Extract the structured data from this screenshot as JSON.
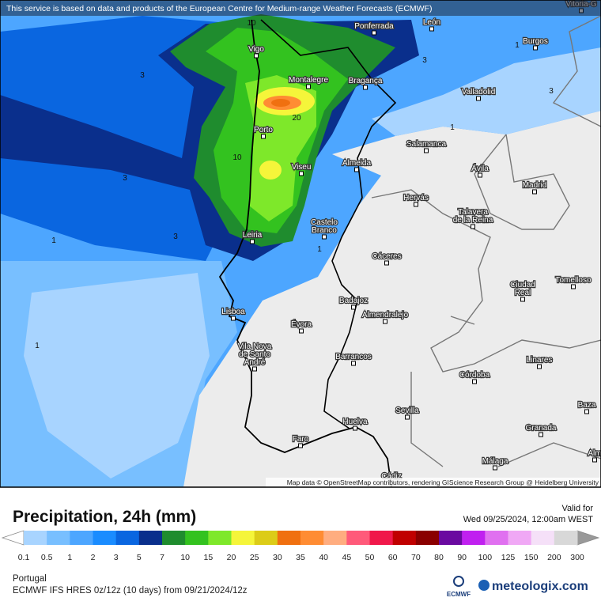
{
  "header": {
    "notice": "This service is based on data and products of the European Centre for Medium-range Weather Forecasts (ECMWF)"
  },
  "map": {
    "cities": [
      [
        "Vitoria-G"
      ],
      [
        "Ponferrada"
      ],
      [
        "León"
      ],
      [
        "Burgos"
      ],
      [
        "Vigo"
      ],
      [
        "Montalegre"
      ],
      [
        "Bragança"
      ],
      [
        "Valladolid"
      ],
      [
        "Porto"
      ],
      [
        "Salamanca"
      ],
      [
        "Viseu"
      ],
      [
        "Almeida"
      ],
      [
        "Ávila"
      ],
      [
        "Madrid"
      ],
      [
        "Hervás"
      ],
      [
        "Talavera",
        "de la Reina"
      ],
      [
        "Castelo",
        "Branco"
      ],
      [
        "Leiria"
      ],
      [
        "Cáceres"
      ],
      [
        "Ciudad",
        "Real"
      ],
      [
        "Tomelloso"
      ],
      [
        "Lisboa"
      ],
      [
        "Badajoz"
      ],
      [
        "Évora"
      ],
      [
        "Almendralejo"
      ],
      [
        "Vila Nova",
        "de Santo",
        "André"
      ],
      [
        "Barrancos"
      ],
      [
        "Linares"
      ],
      [
        "Córdoba"
      ],
      [
        "Sevilla"
      ],
      [
        "Baza"
      ],
      [
        "Huelva"
      ],
      [
        "Granada"
      ],
      [
        "Faro"
      ],
      [
        "Málaga"
      ],
      [
        "Alm"
      ],
      [
        "Cádiz"
      ]
    ],
    "contour_labels": [
      10,
      3,
      3,
      1,
      3,
      20,
      10,
      1,
      3,
      3,
      1,
      1,
      1
    ],
    "attribution": "Map data © OpenStreetMap contributors, rendering GIScience Research Group @ Heidelberg University"
  },
  "legend": {
    "title": "Precipitation, 24h (mm)",
    "valid_label": "Valid for",
    "valid_time": "Wed 09/25/2024, 12:00am WEST",
    "levels": [
      0.1,
      0.5,
      1,
      2,
      3,
      5,
      7,
      10,
      15,
      20,
      25,
      30,
      35,
      40,
      45,
      50,
      60,
      70,
      80,
      90,
      100,
      125,
      150,
      200,
      300
    ],
    "colors": [
      "#a8d4ff",
      "#78bfff",
      "#4da6ff",
      "#1a8cff",
      "#0a66e0",
      "#0a2f8c",
      "#1f8c2e",
      "#33c21f",
      "#7ee82a",
      "#f5f53a",
      "#dccc18",
      "#f07010",
      "#ff8c33",
      "#ffad80",
      "#ff5a7a",
      "#f0184a",
      "#c00000",
      "#8a0000",
      "#6a0aa0",
      "#c020f0",
      "#e070f0",
      "#f0a8f5",
      "#f5e0f8",
      "#d8d8d8"
    ],
    "under_color": "#ffffff",
    "over_color": "#999999"
  },
  "footer": {
    "region": "Portugal",
    "model": "ECMWF IFS HRES 0z/12z (10 days) from  09/21/2024/12z",
    "ecmwf_logo": "ECMWF",
    "brand": "meteologix.com"
  }
}
